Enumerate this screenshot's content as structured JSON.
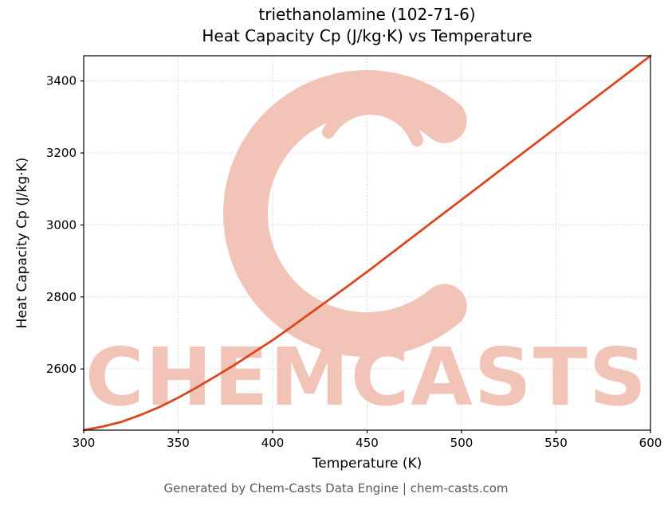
{
  "title_line1": "triethanolamine (102-71-6)",
  "title_line2": "Heat Capacity Cp (J/kg·K) vs Temperature",
  "footer": "Generated by Chem-Casts Data Engine | chem-casts.com",
  "watermark": {
    "text": "CHEMCASTS",
    "letter": "C",
    "color": "#f2c4b7"
  },
  "chart_data": {
    "type": "line",
    "title": "triethanolamine (102-71-6) Heat Capacity Cp (J/kg·K) vs Temperature",
    "xlabel": "Temperature (K)",
    "ylabel": "Heat Capacity Cp (J/kg·K)",
    "xlim": [
      300,
      600
    ],
    "ylim": [
      2430,
      3470
    ],
    "xticks": [
      300,
      350,
      400,
      450,
      500,
      550,
      600
    ],
    "yticks": [
      2600,
      2800,
      3000,
      3200,
      3400
    ],
    "grid": true,
    "grid_style": "dotted",
    "legend": "none",
    "series": [
      {
        "name": "Heat Capacity Cp",
        "color": "#d9481f",
        "x": [
          300,
          310,
          320,
          330,
          340,
          350,
          360,
          370,
          380,
          390,
          400,
          410,
          420,
          430,
          440,
          450,
          460,
          470,
          480,
          490,
          500,
          510,
          520,
          530,
          540,
          550,
          560,
          570,
          580,
          590,
          600
        ],
        "y": [
          2430,
          2440,
          2453,
          2472,
          2494,
          2520,
          2549,
          2580,
          2612,
          2646,
          2680,
          2717,
          2755,
          2793,
          2831,
          2870,
          2910,
          2950,
          2990,
          3030,
          3070,
          3110,
          3150,
          3190,
          3230,
          3270,
          3310,
          3350,
          3390,
          3430,
          3470
        ]
      }
    ]
  }
}
